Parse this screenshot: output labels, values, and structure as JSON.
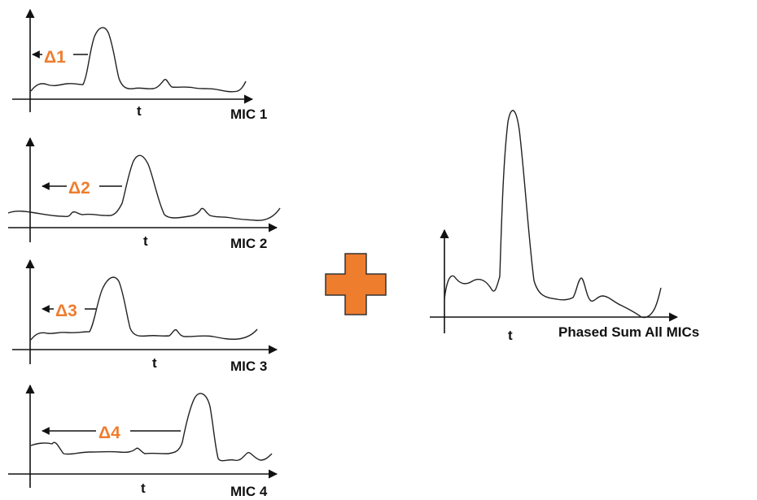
{
  "time_label": "t",
  "mic_labels": [
    "MIC 1",
    "MIC 2",
    "MIC 3",
    "MIC 4"
  ],
  "delay_labels": [
    "Δ1",
    "Δ2",
    "Δ3",
    "Δ4"
  ],
  "sum_label": "Phased Sum All MICs",
  "plus_symbol": "plus-sign",
  "colors": {
    "accent": "#ee7d2e",
    "outline": "#333333",
    "line": "#222222"
  }
}
